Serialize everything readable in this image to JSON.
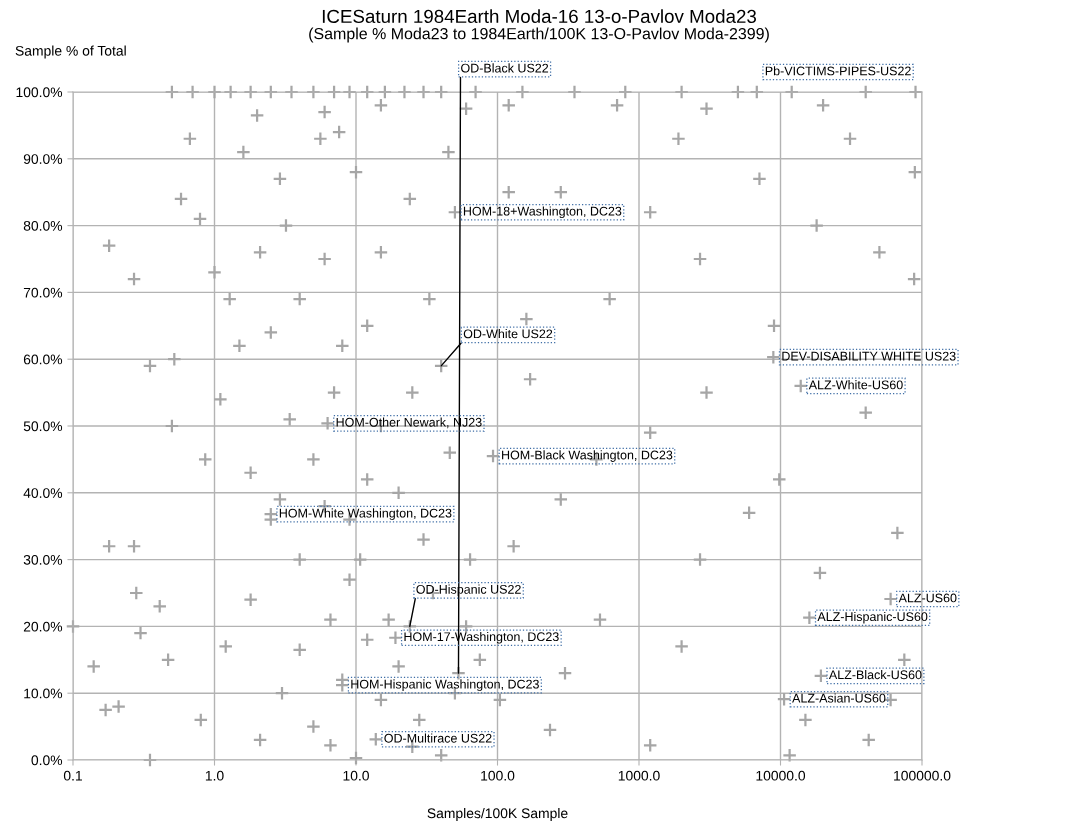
{
  "chart_data": {
    "type": "scatter",
    "title": "ICESaturn 1984Earth Moda-16 13-o-Pavlov Moda23",
    "subtitle": "(Sample % Moda23 to 1984Earth/100K 13-O-Pavlov Moda-2399)",
    "xlabel": "Samples/100K Sample",
    "ylabel": "Sample % of Total",
    "color": "#a6a6a6",
    "marker": "cross",
    "log": "x",
    "grid": true,
    "xlim": [
      0.1,
      100000
    ],
    "ylim": [
      0,
      100
    ],
    "xticks": [
      0.1,
      {
        "value": 1,
        "label": "1.0"
      },
      {
        "value": 10,
        "label": "10.0"
      },
      {
        "value": 100,
        "label": "100.0"
      },
      {
        "value": 1000,
        "label": "1000.0"
      },
      {
        "value": 10000,
        "label": "10000.0"
      },
      {
        "value": 100000,
        "label": "100000.0"
      }
    ],
    "yticks": [
      {
        "value": 0,
        "label": "0.0%"
      },
      {
        "value": 10,
        "label": "10.0%"
      },
      {
        "value": 20,
        "label": "20.0%"
      },
      {
        "value": 30,
        "label": "30.0%"
      },
      {
        "value": 40,
        "label": "40.0%"
      },
      {
        "value": 50,
        "label": "50.0%"
      },
      {
        "value": 60,
        "label": "60.0%"
      },
      {
        "value": 70,
        "label": "70.0%"
      },
      {
        "value": 80,
        "label": "80.0%"
      },
      {
        "value": 90,
        "label": "90.0%"
      },
      {
        "value": 100,
        "label": "100.0%"
      }
    ],
    "x": [
      0.5,
      0.7,
      1,
      1.3,
      1.8,
      2.5,
      3.5,
      5,
      7,
      9,
      12,
      16,
      22,
      30,
      40,
      70,
      150,
      350,
      800,
      2000,
      5000,
      6800,
      12000,
      40000,
      90000,
      15,
      60,
      120,
      700,
      3000,
      20000,
      6,
      2,
      0.67,
      0.58,
      0.18,
      0.27,
      0.79,
      1,
      1.28,
      1.6,
      2.1,
      2.9,
      4,
      5.6,
      7.6,
      15,
      24,
      33,
      3.2,
      6,
      10,
      12,
      8,
      2.5,
      1.5,
      0.35,
      0.52,
      45,
      120,
      280,
      1200,
      2700,
      7100,
      31000,
      50000,
      88000,
      89000,
      620,
      1900,
      18000,
      9000,
      160,
      50,
      40,
      8900,
      13900,
      1.1,
      0.86,
      3.4,
      2.5,
      10.7,
      9,
      4,
      2.9,
      1.8,
      46,
      64,
      280,
      170,
      1200,
      2700,
      9800,
      19000,
      67000,
      5,
      7,
      15,
      20,
      30,
      12,
      6,
      25,
      0.5,
      0.18,
      0.27,
      0.28,
      3000,
      500,
      40000,
      6000,
      130,
      6.3,
      93,
      2.5,
      0.1,
      0.14,
      0.17,
      0.21,
      0.41,
      0.3,
      0.47,
      1.8,
      4,
      17,
      28,
      40,
      15,
      6.6,
      2.1,
      0.8,
      0.35,
      6.6,
      104,
      75,
      235,
      530,
      1200,
      11600,
      42000,
      75000,
      8,
      12,
      20,
      35,
      50,
      3,
      5,
      10,
      25,
      60,
      300,
      2000,
      15000,
      60000,
      1.2,
      9,
      53,
      60000,
      16000,
      24,
      19,
      19300,
      8,
      10600,
      13.8
    ],
    "values": [
      100,
      100,
      100,
      100,
      100,
      100,
      100,
      100,
      100,
      100,
      100,
      100,
      100,
      100,
      100,
      100,
      100,
      100,
      100,
      100,
      100,
      100,
      100,
      100,
      100,
      98,
      97.5,
      98,
      98,
      97.5,
      98,
      97,
      96.5,
      93,
      84,
      77,
      72,
      81,
      73,
      69,
      91,
      76,
      87,
      69,
      93,
      94,
      76,
      84,
      69,
      80,
      75,
      88,
      65,
      62,
      64,
      62,
      59,
      60,
      91,
      85,
      85,
      82,
      75,
      87,
      93,
      76,
      72,
      88,
      69,
      93,
      80,
      65,
      66,
      82,
      59,
      60.3,
      56,
      54,
      45,
      51,
      36,
      30,
      36,
      30,
      39,
      43,
      46,
      30,
      39,
      57,
      49,
      30,
      42,
      28,
      34,
      45,
      55,
      50,
      40,
      33,
      42,
      38,
      55,
      50,
      32,
      32,
      25,
      55,
      45,
      52,
      37,
      32,
      50.4,
      45.5,
      36.8,
      20,
      14,
      7.5,
      8,
      23,
      19,
      15,
      24,
      16.5,
      21,
      6,
      0.7,
      9,
      2.2,
      3,
      6,
      0,
      21,
      9,
      15,
      4.5,
      21,
      2.2,
      0.7,
      3,
      15,
      12,
      18,
      14,
      25,
      10,
      10,
      5,
      0.3,
      2,
      20,
      13,
      17,
      6,
      9,
      17,
      27,
      13,
      24.1,
      21.3,
      20,
      18.3,
      12.6,
      11.2,
      9.1,
      3.1
    ],
    "annotations": [
      {
        "text": "OD-Black US22",
        "x": 53,
        "y": 13
      },
      {
        "text": "Pb-VICTIMS-PIPES-US22",
        "x": 6800,
        "y": 100
      },
      {
        "text": "HOM-18+Washington, DC23",
        "x": 50,
        "y": 82
      },
      {
        "text": "OD-White US22",
        "x": 40,
        "y": 59
      },
      {
        "text": "DEV-DISABILITY WHITE US23",
        "x": 8900,
        "y": 60.3
      },
      {
        "text": "ALZ-White-US60",
        "x": 13900,
        "y": 56
      },
      {
        "text": "HOM-Other Newark, NJ23",
        "x": 6.3,
        "y": 50.4
      },
      {
        "text": "HOM-Black Washington, DC23",
        "x": 93,
        "y": 45.5
      },
      {
        "text": "HOM-White Washington, DC23",
        "x": 2.5,
        "y": 36.8
      },
      {
        "text": "ALZ-US60",
        "x": 60000,
        "y": 24.1
      },
      {
        "text": "ALZ-Hispanic-US60",
        "x": 16000,
        "y": 21.3
      },
      {
        "text": "OD-Hispanic US22",
        "x": 24,
        "y": 20
      },
      {
        "text": "HOM-17-Washington, DC23",
        "x": 19,
        "y": 18.3
      },
      {
        "text": "ALZ-Black-US60",
        "x": 19300,
        "y": 12.6
      },
      {
        "text": "HOM-Hispanic Washington, DC23",
        "x": 8,
        "y": 11.2
      },
      {
        "text": "ALZ-Asian-US60",
        "x": 10600,
        "y": 9.1
      },
      {
        "text": "OD-Multirace US22",
        "x": 13.8,
        "y": 3.1
      }
    ]
  }
}
